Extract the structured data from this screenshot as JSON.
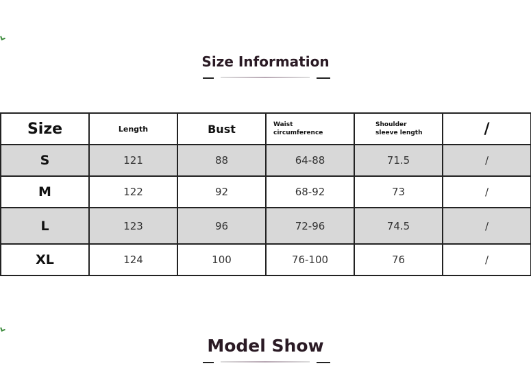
{
  "size_section": {
    "title": "Size Information"
  },
  "table": {
    "header": [
      "Size",
      "Length",
      "Bust",
      "Waist circumference",
      "Shoulder sleeve length",
      "/"
    ],
    "rows": [
      [
        "S",
        "121",
        "88",
        "64-88",
        "71.5",
        "/"
      ],
      [
        "M",
        "122",
        "92",
        "68-92",
        "73",
        "/"
      ],
      [
        "L",
        "123",
        "96",
        "72-96",
        "74.5",
        "/"
      ],
      [
        "XL",
        "124",
        "100",
        "76-100",
        "76",
        "/"
      ]
    ]
  },
  "model_section": {
    "title": "Model Show"
  }
}
